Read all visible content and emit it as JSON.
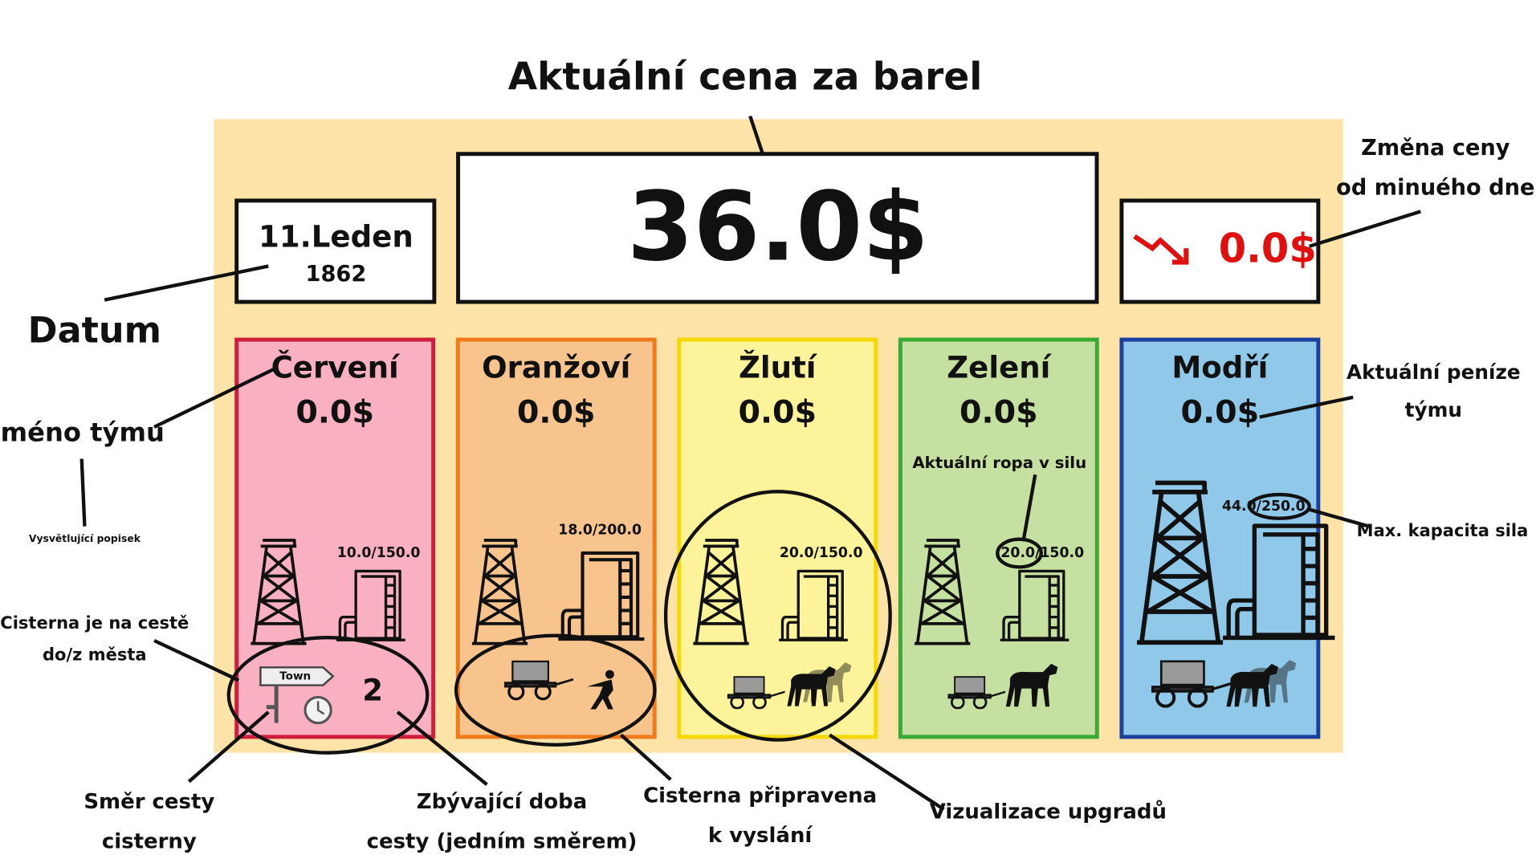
{
  "header": {
    "title": "Aktuální cena za barel",
    "price": "36.0$",
    "date": "11.Leden",
    "year": "1862",
    "price_change": "0.0$"
  },
  "teams": [
    {
      "name": "Červení",
      "money": "0.0$",
      "silo": "10.0/150.0",
      "travel_time": "2",
      "sign": "Town"
    },
    {
      "name": "Oranžoví",
      "money": "0.0$",
      "silo": "18.0/200.0"
    },
    {
      "name": "Žlutí",
      "money": "0.0$",
      "silo": "20.0/150.0"
    },
    {
      "name": "Zelení",
      "money": "0.0$",
      "silo": "20.0/150.0"
    },
    {
      "name": "Modří",
      "money": "0.0$",
      "silo": "44.0/250.0"
    }
  ],
  "annotations": {
    "change": [
      "Změna ceny",
      "od minuého dne"
    ],
    "date": "Datum",
    "team_name": "Jméno týmu",
    "tooltip": "Vysvětlující popisek",
    "money": [
      "Aktuální peníze",
      "týmu"
    ],
    "silo_oil": "Aktuální ropa v silu",
    "silo_capacity": "Max. kapacita sila",
    "on_road": [
      "Cisterna je na cestě",
      "do/z města"
    ],
    "direction": [
      "Směr cesty",
      "cisterny"
    ],
    "remaining": [
      "Zbývající doba",
      "cesty (jedním směrem)"
    ],
    "ready": [
      "Cisterna připravena",
      "k vyslání"
    ],
    "upgrades": "Vizualizace upgradů"
  }
}
